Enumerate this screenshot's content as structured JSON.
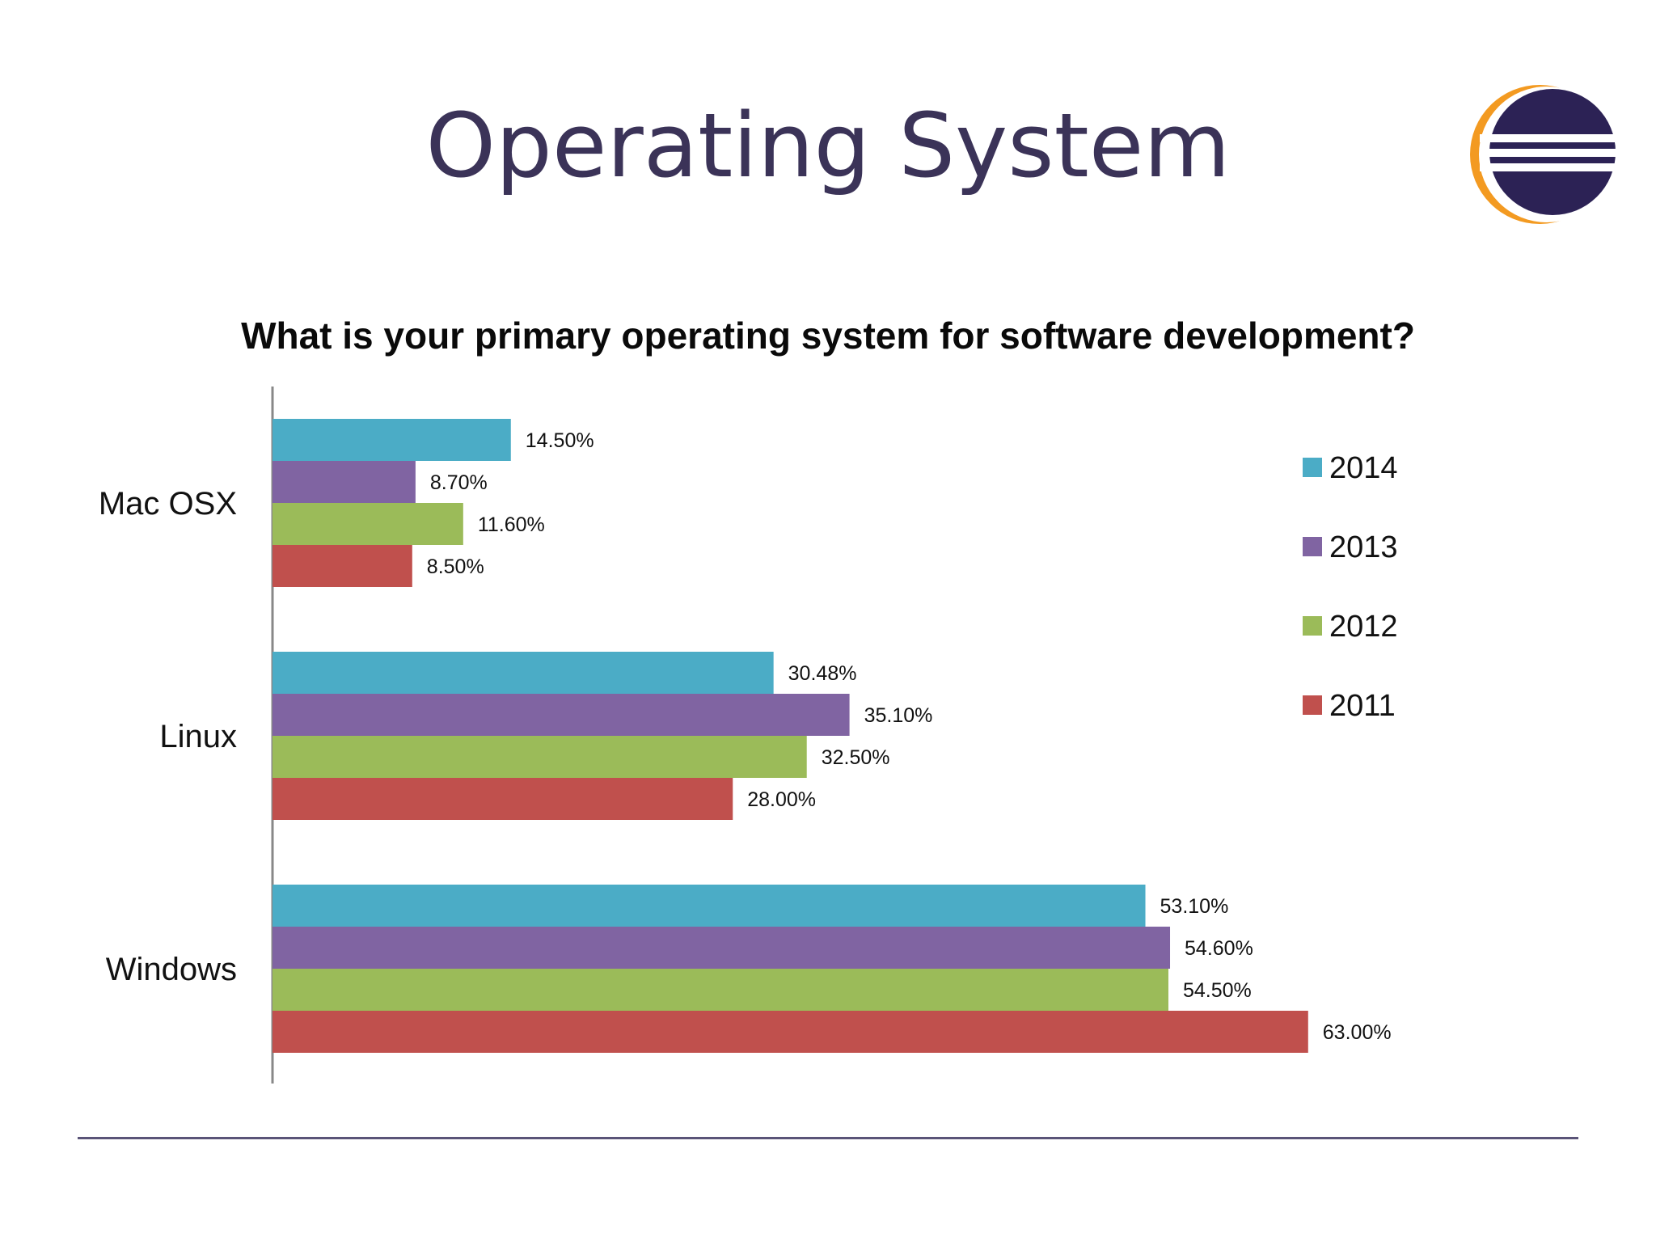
{
  "slide": {
    "title": "Operating System",
    "footer_color": "#5a5478"
  },
  "logo": {
    "icon": "eclipse-logo-icon",
    "colors": {
      "ring": "#f39a21",
      "disc": "#2c2255",
      "stripes": "#ffffff"
    }
  },
  "chart_data": {
    "type": "bar",
    "orientation": "horizontal",
    "title": "What is your primary operating system for software development?",
    "categories": [
      "Mac OSX",
      "Linux",
      "Windows"
    ],
    "series": [
      {
        "name": "2014",
        "color": "#4bacc6",
        "values": [
          14.5,
          30.48,
          53.1
        ],
        "labels": [
          "14.50%",
          "30.48%",
          "53.10%"
        ]
      },
      {
        "name": "2013",
        "color": "#8064a2",
        "values": [
          8.7,
          35.1,
          54.6
        ],
        "labels": [
          "8.70%",
          "35.10%",
          "54.60%"
        ]
      },
      {
        "name": "2012",
        "color": "#9bbb59",
        "values": [
          11.6,
          32.5,
          54.5
        ],
        "labels": [
          "11.60%",
          "32.50%",
          "54.50%"
        ]
      },
      {
        "name": "2011",
        "color": "#c0504d",
        "values": [
          8.5,
          28.0,
          63.0
        ],
        "labels": [
          "8.50%",
          "28.00%",
          "63.00%"
        ]
      }
    ],
    "xlim": [
      0,
      70
    ],
    "grid": false,
    "legend_position": "right"
  }
}
